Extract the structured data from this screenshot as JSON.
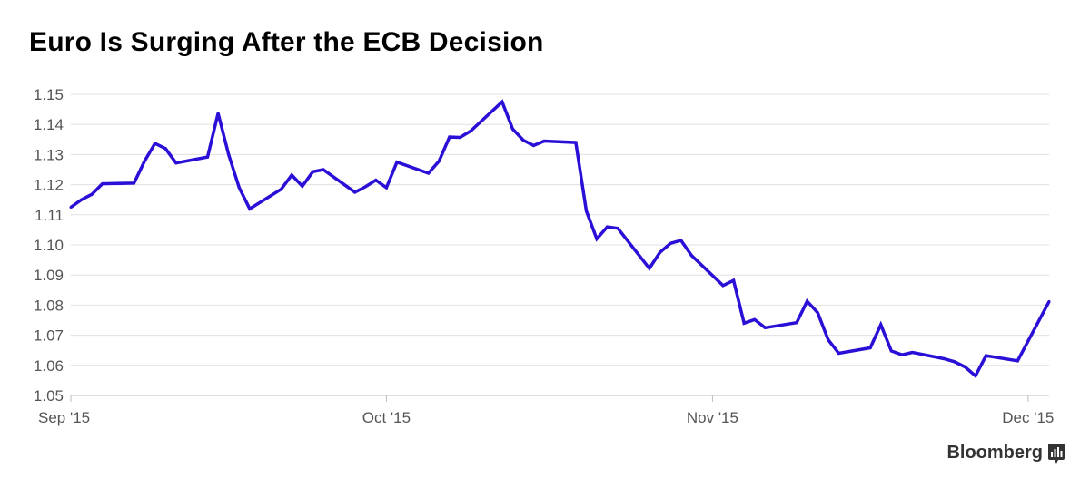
{
  "title": "Euro Is Surging After the ECB Decision",
  "brand": {
    "name": "Bloomberg",
    "icon": "bloomberg-chart-icon"
  },
  "colors": {
    "line": "#2a0fd6",
    "grid": "#e0e0e0",
    "axis": "#bdbdbd",
    "text": "#555555"
  },
  "chart_data": {
    "type": "line",
    "title": "Euro Is Surging After the ECB Decision",
    "xlabel": "",
    "ylabel": "",
    "ylim": [
      1.05,
      1.15
    ],
    "yticks": [
      "1.05",
      "1.06",
      "1.07",
      "1.08",
      "1.09",
      "1.10",
      "1.11",
      "1.12",
      "1.13",
      "1.14",
      "1.15"
    ],
    "xticks": [
      {
        "date": "2015-09-01",
        "label": "Sep '15"
      },
      {
        "date": "2015-10-01",
        "label": "Oct '15"
      },
      {
        "date": "2015-11-01",
        "label": "Nov '15"
      },
      {
        "date": "2015-12-01",
        "label": "Dec '15"
      }
    ],
    "grid": true,
    "series": [
      {
        "points": [
          [
            "2015-09-01",
            1.1125
          ],
          [
            "2015-09-02",
            1.115
          ],
          [
            "2015-09-03",
            1.1168
          ],
          [
            "2015-09-04",
            1.1203
          ],
          [
            "2015-09-07",
            1.1205
          ],
          [
            "2015-09-08",
            1.1278
          ],
          [
            "2015-09-09",
            1.1337
          ],
          [
            "2015-09-10",
            1.132
          ],
          [
            "2015-09-11",
            1.1272
          ],
          [
            "2015-09-14",
            1.1292
          ],
          [
            "2015-09-15",
            1.1437
          ],
          [
            "2015-09-16",
            1.13
          ],
          [
            "2015-09-17",
            1.119
          ],
          [
            "2015-09-18",
            1.112
          ],
          [
            "2015-09-21",
            1.1185
          ],
          [
            "2015-09-22",
            1.1232
          ],
          [
            "2015-09-23",
            1.1195
          ],
          [
            "2015-09-24",
            1.1243
          ],
          [
            "2015-09-25",
            1.125
          ],
          [
            "2015-09-28",
            1.1175
          ],
          [
            "2015-09-29",
            1.1193
          ],
          [
            "2015-09-30",
            1.1215
          ],
          [
            "2015-10-01",
            1.119
          ],
          [
            "2015-10-02",
            1.1275
          ],
          [
            "2015-10-05",
            1.1238
          ],
          [
            "2015-10-06",
            1.1278
          ],
          [
            "2015-10-07",
            1.1358
          ],
          [
            "2015-10-08",
            1.1357
          ],
          [
            "2015-10-09",
            1.1378
          ],
          [
            "2015-10-12",
            1.1475
          ],
          [
            "2015-10-13",
            1.1385
          ],
          [
            "2015-10-14",
            1.1348
          ],
          [
            "2015-10-15",
            1.133
          ],
          [
            "2015-10-16",
            1.1345
          ],
          [
            "2015-10-19",
            1.134
          ],
          [
            "2015-10-20",
            1.1113
          ],
          [
            "2015-10-21",
            1.102
          ],
          [
            "2015-10-22",
            1.106
          ],
          [
            "2015-10-23",
            1.1055
          ],
          [
            "2015-10-26",
            1.0922
          ],
          [
            "2015-10-27",
            1.0975
          ],
          [
            "2015-10-28",
            1.1005
          ],
          [
            "2015-10-29",
            1.1015
          ],
          [
            "2015-10-30",
            1.0965
          ],
          [
            "2015-11-02",
            1.0865
          ],
          [
            "2015-11-03",
            1.0882
          ],
          [
            "2015-11-04",
            1.074
          ],
          [
            "2015-11-05",
            1.0752
          ],
          [
            "2015-11-06",
            1.0725
          ],
          [
            "2015-11-09",
            1.0742
          ],
          [
            "2015-11-10",
            1.0813
          ],
          [
            "2015-11-11",
            1.0775
          ],
          [
            "2015-11-12",
            1.0685
          ],
          [
            "2015-11-13",
            1.064
          ],
          [
            "2015-11-16",
            1.0658
          ],
          [
            "2015-11-17",
            1.0735
          ],
          [
            "2015-11-18",
            1.0648
          ],
          [
            "2015-11-19",
            1.0635
          ],
          [
            "2015-11-20",
            1.0643
          ],
          [
            "2015-11-23",
            1.0622
          ],
          [
            "2015-11-24",
            1.0612
          ],
          [
            "2015-11-25",
            1.0595
          ],
          [
            "2015-11-26",
            1.0565
          ],
          [
            "2015-11-27",
            1.0632
          ],
          [
            "2015-11-30",
            1.0615
          ],
          [
            "2015-12-03",
            1.0812
          ]
        ]
      }
    ]
  }
}
